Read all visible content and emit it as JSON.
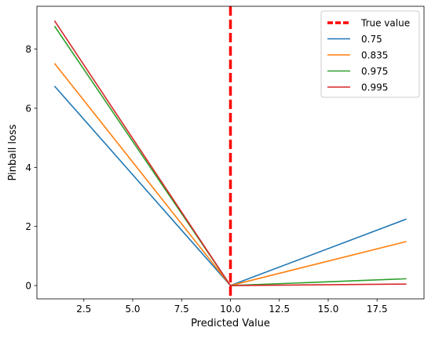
{
  "chart_data": {
    "type": "line",
    "xlabel": "Predicted Value",
    "ylabel": "Pinball loss",
    "xlim": [
      0.1,
      19.9
    ],
    "ylim": [
      -0.45,
      9.45
    ],
    "xticks": [
      2.5,
      5.0,
      7.5,
      10.0,
      12.5,
      15.0,
      17.5
    ],
    "xtick_labels": [
      "2.5",
      "5.0",
      "7.5",
      "10.0",
      "12.5",
      "15.0",
      "17.5"
    ],
    "yticks": [
      0,
      2,
      4,
      6,
      8
    ],
    "ytick_labels": [
      "0",
      "2",
      "4",
      "6",
      "8"
    ],
    "grid": false,
    "legend_position": "top-right",
    "true_value": {
      "name": "True value",
      "x": 10,
      "color": "#ff0000"
    },
    "series": [
      {
        "name": "0.75",
        "color": "#1f77b4",
        "x": [
          1,
          10,
          19
        ],
        "y": [
          6.75,
          0,
          2.25
        ]
      },
      {
        "name": "0.835",
        "color": "#ff7f0e",
        "x": [
          1,
          10,
          19
        ],
        "y": [
          7.52,
          0,
          1.49
        ]
      },
      {
        "name": "0.975",
        "color": "#2ca02c",
        "x": [
          1,
          10,
          19
        ],
        "y": [
          8.78,
          0,
          0.23
        ]
      },
      {
        "name": "0.995",
        "color": "#d62728",
        "x": [
          1,
          10,
          19
        ],
        "y": [
          8.96,
          0,
          0.05
        ]
      }
    ]
  }
}
